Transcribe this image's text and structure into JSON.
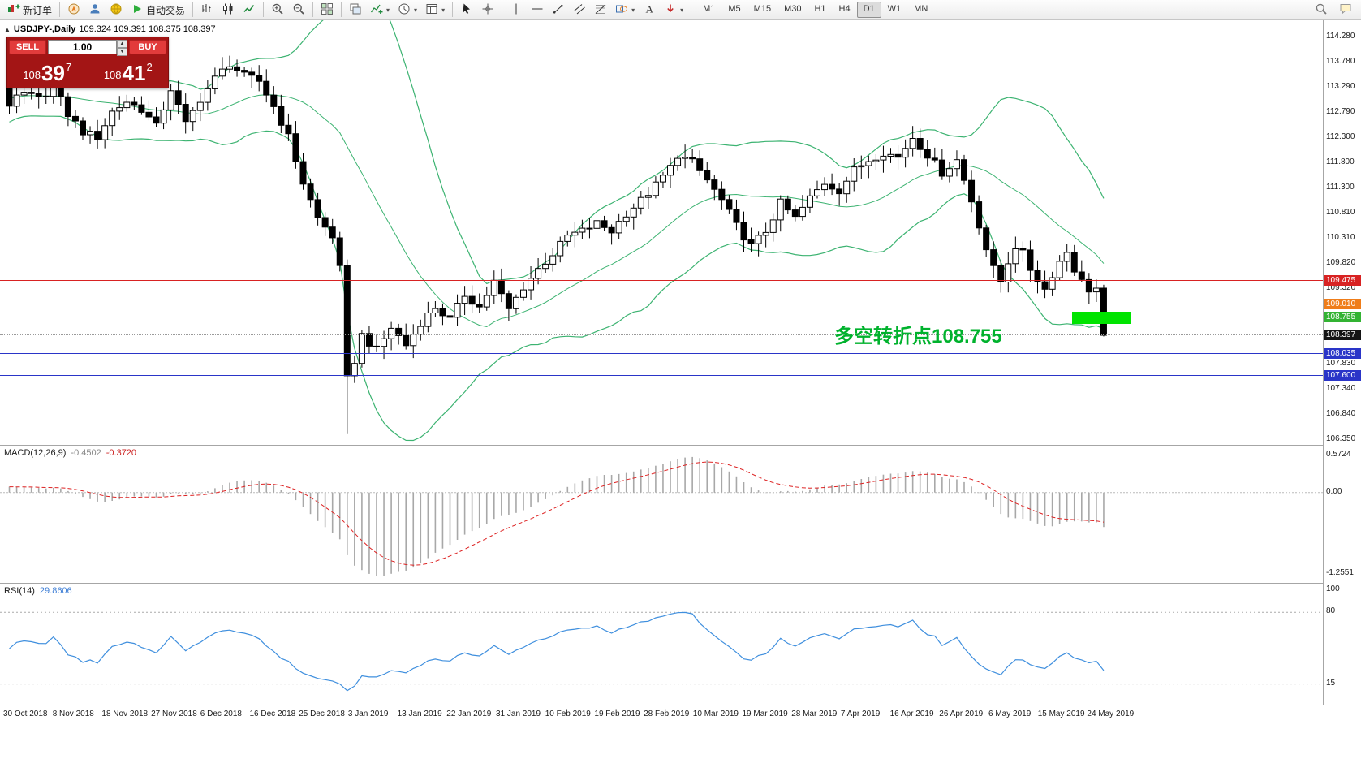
{
  "toolbar": {
    "left_items": [
      {
        "name": "new-order-button",
        "icon": "neworder",
        "label": "新订单"
      },
      {
        "sep": true
      },
      {
        "name": "navigator-icon",
        "icon": "navigator"
      },
      {
        "name": "expert-advisor-icon",
        "icon": "expert"
      },
      {
        "name": "community-icon",
        "icon": "community"
      },
      {
        "name": "auto-trading-button",
        "icon": "play",
        "label": "自动交易"
      },
      {
        "sep": true
      },
      {
        "name": "bar-chart-button",
        "icon": "chartbars"
      },
      {
        "name": "candlestick-chart-button",
        "icon": "chartcandles"
      },
      {
        "name": "line-chart-button",
        "icon": "chartline"
      },
      {
        "sep": true
      },
      {
        "name": "zoom-in-button",
        "icon": "zoomin"
      },
      {
        "name": "zoom-out-button",
        "icon": "zoomout"
      },
      {
        "sep": true
      },
      {
        "name": "tile-windows-button",
        "icon": "tile"
      },
      {
        "sep": true
      },
      {
        "name": "arrange-charts-button",
        "icon": "cascade"
      },
      {
        "name": "indicators-button",
        "icon": "indicators",
        "caret": true
      },
      {
        "name": "periods-button",
        "icon": "clock",
        "caret": true
      },
      {
        "name": "templates-button",
        "icon": "template",
        "caret": true
      },
      {
        "sep": true
      },
      {
        "name": "cursor-tool-button",
        "icon": "cursor"
      },
      {
        "name": "crosshair-tool-button",
        "icon": "crosshair"
      },
      {
        "sep": true
      },
      {
        "name": "vertical-line-tool-button",
        "icon": "vline"
      },
      {
        "name": "horizontal-line-tool-button",
        "icon": "hline"
      },
      {
        "name": "trendline-tool-button",
        "icon": "trendline"
      },
      {
        "name": "channel-tool-button",
        "icon": "channel"
      },
      {
        "name": "fibonacci-tool-button",
        "icon": "fibo"
      },
      {
        "name": "shapes-tool-button",
        "icon": "shapes",
        "caret": true
      },
      {
        "name": "text-tool-button",
        "icon": "text"
      },
      {
        "name": "arrows-tool-button",
        "icon": "arrows",
        "caret": true
      },
      {
        "sep": true
      }
    ],
    "timeframes": [
      "M1",
      "M5",
      "M15",
      "M30",
      "H1",
      "H4",
      "D1",
      "W1",
      "MN"
    ],
    "active_timeframe": "D1",
    "right_items": [
      {
        "name": "search-button",
        "icon": "search"
      },
      {
        "name": "chat-button",
        "icon": "chat"
      }
    ]
  },
  "chart": {
    "symbol_line": "USDJPY-,Daily",
    "ohlc_line": "109.324 109.391 108.375 108.397",
    "price_axis_labels": [
      "114.280",
      "113.780",
      "113.290",
      "112.790",
      "112.300",
      "111.800",
      "111.300",
      "110.810",
      "110.310",
      "109.820",
      "109.320",
      "107.830",
      "107.340",
      "106.840",
      "106.350"
    ],
    "levels": [
      {
        "value": 109.475,
        "label": "109.475",
        "color": "#d82222"
      },
      {
        "value": 109.01,
        "label": "109.010",
        "color": "#ef7d1a"
      },
      {
        "value": 108.755,
        "label": "108.755",
        "color": "#33b333"
      },
      {
        "value": 108.035,
        "label": "108.035",
        "color": "#2a35c8"
      },
      {
        "value": 107.6,
        "label": "107.600",
        "color": "#2a35c8"
      }
    ],
    "current_price": {
      "value": 108.397,
      "label": "108.397",
      "color": "#141414"
    },
    "annotation": {
      "text": "多空转折点108.755",
      "color": "#00b22d"
    },
    "highlight_box": {
      "value": 108.755,
      "color": "#00e400"
    }
  },
  "quote_panel": {
    "sell_label": "SELL",
    "buy_label": "BUY",
    "volume": "1.00",
    "bid": {
      "prefix": "108",
      "big": "39",
      "sup": "7"
    },
    "ask": {
      "prefix": "108",
      "big": "41",
      "sup": "2"
    }
  },
  "macd": {
    "title": "MACD(12,26,9)",
    "value_main": "-0.4502",
    "value_signal": "-0.3720",
    "scale": [
      "0.5724",
      "0.00",
      "-1.2551"
    ]
  },
  "rsi": {
    "title": "RSI(14)",
    "value": "29.8606",
    "scale": [
      "100",
      "80",
      "15"
    ],
    "level_lines": [
      80,
      15
    ]
  },
  "colors": {
    "up_candle": "#ffffff",
    "down_candle": "#000000",
    "candle_border": "#000000",
    "bollinger": "#3cb371",
    "macd_histogram": "#a8a8a8",
    "macd_signal": "#dd2222",
    "rsi_line": "#3f8fde",
    "annotation_green": "#00b22d",
    "highlight_green": "#00e400",
    "panel_red": "#a31515",
    "button_red": "#e23b3b"
  },
  "chart_data": {
    "type": "candlestick",
    "symbol": "USDJPY-",
    "timeframe": "Daily",
    "last_ohlc": {
      "open": 109.324,
      "high": 109.391,
      "low": 108.375,
      "close": 108.397
    },
    "visible_price_range": [
      106.35,
      114.28
    ],
    "candle_count": 150,
    "x_axis_dates": [
      "30 Oct 2018",
      "8 Nov 2018",
      "18 Nov 2018",
      "27 Nov 2018",
      "6 Dec 2018",
      "16 Dec 2018",
      "25 Dec 2018",
      "3 Jan 2019",
      "13 Jan 2019",
      "22 Jan 2019",
      "31 Jan 2019",
      "10 Feb 2019",
      "19 Feb 2019",
      "28 Feb 2019",
      "10 Mar 2019",
      "19 Mar 2019",
      "28 Mar 2019",
      "7 Apr 2019",
      "16 Apr 2019",
      "26 Apr 2019",
      "6 May 2019",
      "15 May 2019",
      "24 May 2019"
    ],
    "close_path_anchors": [
      [
        0,
        112.95
      ],
      [
        2,
        113.15
      ],
      [
        4,
        113.05
      ],
      [
        6,
        113.3
      ],
      [
        8,
        112.75
      ],
      [
        10,
        112.4
      ],
      [
        12,
        112.3
      ],
      [
        14,
        112.8
      ],
      [
        16,
        113.0
      ],
      [
        18,
        112.85
      ],
      [
        20,
        112.5
      ],
      [
        22,
        113.25
      ],
      [
        24,
        112.55
      ],
      [
        26,
        113.05
      ],
      [
        28,
        113.45
      ],
      [
        30,
        113.75
      ],
      [
        32,
        113.5
      ],
      [
        34,
        113.4
      ],
      [
        36,
        112.9
      ],
      [
        38,
        112.3
      ],
      [
        40,
        111.4
      ],
      [
        42,
        110.7
      ],
      [
        44,
        110.35
      ],
      [
        45,
        109.7
      ],
      [
        46,
        107.6
      ],
      [
        47,
        107.9
      ],
      [
        48,
        108.4
      ],
      [
        50,
        108.1
      ],
      [
        52,
        108.55
      ],
      [
        54,
        108.2
      ],
      [
        56,
        108.65
      ],
      [
        58,
        108.95
      ],
      [
        60,
        108.7
      ],
      [
        62,
        109.2
      ],
      [
        64,
        108.95
      ],
      [
        66,
        109.45
      ],
      [
        68,
        108.9
      ],
      [
        70,
        109.35
      ],
      [
        72,
        109.7
      ],
      [
        74,
        110.0
      ],
      [
        76,
        110.35
      ],
      [
        78,
        110.45
      ],
      [
        80,
        110.6
      ],
      [
        82,
        110.45
      ],
      [
        84,
        110.8
      ],
      [
        86,
        111.05
      ],
      [
        88,
        111.35
      ],
      [
        90,
        111.7
      ],
      [
        91,
        111.95
      ],
      [
        93,
        111.8
      ],
      [
        95,
        111.45
      ],
      [
        97,
        111.05
      ],
      [
        99,
        110.55
      ],
      [
        101,
        110.15
      ],
      [
        103,
        110.45
      ],
      [
        105,
        111.0
      ],
      [
        107,
        110.7
      ],
      [
        109,
        111.1
      ],
      [
        111,
        111.4
      ],
      [
        113,
        111.25
      ],
      [
        115,
        111.65
      ],
      [
        117,
        111.85
      ],
      [
        119,
        112.0
      ],
      [
        121,
        111.9
      ],
      [
        123,
        112.3
      ],
      [
        125,
        111.95
      ],
      [
        127,
        111.6
      ],
      [
        129,
        111.85
      ],
      [
        131,
        111.05
      ],
      [
        133,
        110.1
      ],
      [
        134,
        109.7
      ],
      [
        135,
        109.45
      ],
      [
        136,
        109.85
      ],
      [
        137,
        110.15
      ],
      [
        138,
        110.0
      ],
      [
        139,
        109.7
      ],
      [
        140,
        109.5
      ],
      [
        141,
        109.3
      ],
      [
        142,
        109.6
      ],
      [
        143,
        109.85
      ],
      [
        144,
        110.05
      ],
      [
        145,
        109.7
      ],
      [
        146,
        109.45
      ],
      [
        147,
        109.3
      ],
      [
        148,
        109.324
      ],
      [
        149,
        108.397
      ]
    ],
    "flash_crash": {
      "index": 46,
      "low": 106.45,
      "close": 107.6
    },
    "horizontal_levels": [
      109.475,
      109.01,
      108.755,
      108.035,
      107.6
    ],
    "pivot_annotation_value": 108.755,
    "indicators": {
      "bollinger_bands": {
        "period": 20,
        "deviation": 2
      },
      "macd": {
        "fast": 12,
        "slow": 26,
        "signal": 9,
        "current_main": -0.4502,
        "current_signal": -0.372,
        "scale_max": 0.5724,
        "scale_min": -1.2551
      },
      "rsi": {
        "period": 14,
        "current": 29.8606,
        "scale": [
          100,
          80,
          15
        ]
      }
    }
  }
}
